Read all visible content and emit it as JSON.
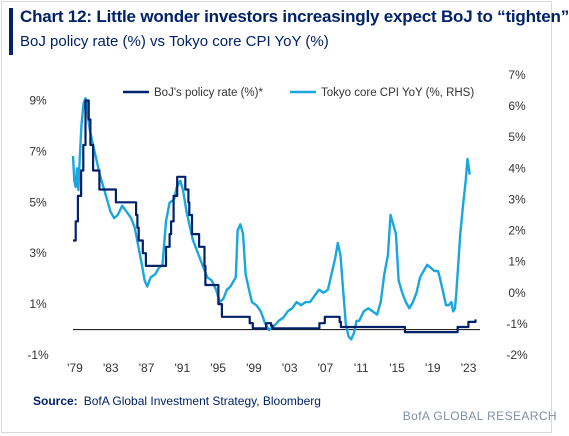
{
  "header": {
    "title": "Chart 12: Little wonder investors increasingly expect BoJ to “tighten”",
    "subtitle": "BoJ policy rate (%) vs Tokyo core CPI YoY (%)"
  },
  "footer": {
    "source_label": "Source:",
    "source_text": "BofA Global Investment Strategy, Bloomberg",
    "brand": "BofA GLOBAL RESEARCH"
  },
  "colors": {
    "boj": "#012169",
    "cpi": "#1aa6df",
    "axis": "#222222",
    "text": "#333333"
  },
  "chart_data": {
    "type": "line",
    "legend_position": "top",
    "grid": false,
    "x_range": [
      1979,
      2024.5
    ],
    "x_ticks": [
      {
        "v": 1979,
        "label": "'79"
      },
      {
        "v": 1983,
        "label": "'83"
      },
      {
        "v": 1987,
        "label": "'87"
      },
      {
        "v": 1991,
        "label": "'91"
      },
      {
        "v": 1995,
        "label": "'95"
      },
      {
        "v": 1999,
        "label": "'99"
      },
      {
        "v": 2003,
        "label": "'03"
      },
      {
        "v": 2007,
        "label": "'07"
      },
      {
        "v": 2011,
        "label": "'11"
      },
      {
        "v": 2015,
        "label": "'15"
      },
      {
        "v": 2019,
        "label": "'19"
      },
      {
        "v": 2023,
        "label": "'23"
      }
    ],
    "y_left": {
      "range": [
        -1,
        10
      ],
      "ticks": [
        {
          "v": 9,
          "label": "9%"
        },
        {
          "v": 7,
          "label": "7%"
        },
        {
          "v": 5,
          "label": "5%"
        },
        {
          "v": 3,
          "label": "3%"
        },
        {
          "v": 1,
          "label": "1%"
        },
        {
          "v": -1,
          "label": "-1%"
        }
      ]
    },
    "y_right": {
      "range": [
        -2,
        7
      ],
      "ticks": [
        {
          "v": 7,
          "label": "7%"
        },
        {
          "v": 6,
          "label": "6%"
        },
        {
          "v": 5,
          "label": "5%"
        },
        {
          "v": 4,
          "label": "4%"
        },
        {
          "v": 3,
          "label": "3%"
        },
        {
          "v": 2,
          "label": "2%"
        },
        {
          "v": 1,
          "label": "1%"
        },
        {
          "v": 0,
          "label": "0%"
        },
        {
          "v": -1,
          "label": "-1%"
        },
        {
          "v": -2,
          "label": "-2%"
        }
      ]
    },
    "series": [
      {
        "name": "BoJ's policy rate (%)*",
        "axis": "left",
        "step": true,
        "points": [
          [
            1979.0,
            3.5
          ],
          [
            1979.3,
            4.25
          ],
          [
            1979.55,
            5.25
          ],
          [
            1979.9,
            6.25
          ],
          [
            1980.15,
            7.25
          ],
          [
            1980.4,
            9.0
          ],
          [
            1980.75,
            8.25
          ],
          [
            1980.95,
            7.25
          ],
          [
            1981.25,
            6.25
          ],
          [
            1981.95,
            5.5
          ],
          [
            1983.8,
            5.0
          ],
          [
            1986.05,
            4.5
          ],
          [
            1986.2,
            4.0
          ],
          [
            1986.35,
            3.5
          ],
          [
            1986.8,
            3.0
          ],
          [
            1987.15,
            2.5
          ],
          [
            1989.4,
            3.25
          ],
          [
            1989.8,
            3.75
          ],
          [
            1989.97,
            4.25
          ],
          [
            1990.25,
            5.25
          ],
          [
            1990.65,
            6.0
          ],
          [
            1991.55,
            5.5
          ],
          [
            1991.9,
            5.0
          ],
          [
            1992.0,
            4.5
          ],
          [
            1992.3,
            3.75
          ],
          [
            1993.1,
            3.25
          ],
          [
            1993.7,
            2.5
          ],
          [
            1993.8,
            1.75
          ],
          [
            1995.25,
            1.0
          ],
          [
            1995.65,
            0.5
          ],
          [
            1998.75,
            0.25
          ],
          [
            1999.1,
            0.05
          ],
          [
            2000.6,
            0.25
          ],
          [
            2001.15,
            0.15
          ],
          [
            2001.3,
            0.05
          ],
          [
            2006.55,
            0.25
          ],
          [
            2007.15,
            0.5
          ],
          [
            2008.8,
            0.3
          ],
          [
            2008.95,
            0.1
          ],
          [
            2016.1,
            -0.1
          ],
          [
            2022.0,
            0.1
          ],
          [
            2023.2,
            0.3
          ],
          [
            2024.0,
            0.4
          ]
        ]
      },
      {
        "name": "Tokyo core CPI YoY (%, RHS)",
        "axis": "right",
        "points": [
          [
            1979.0,
            4.4
          ],
          [
            1979.15,
            3.6
          ],
          [
            1979.3,
            3.4
          ],
          [
            1979.45,
            4.0
          ],
          [
            1979.6,
            3.3
          ],
          [
            1979.75,
            4.3
          ],
          [
            1979.95,
            5.4
          ],
          [
            1980.2,
            6.1
          ],
          [
            1980.4,
            6.25
          ],
          [
            1980.55,
            6.1
          ],
          [
            1980.7,
            5.6
          ],
          [
            1980.9,
            5.2
          ],
          [
            1981.2,
            4.8
          ],
          [
            1981.6,
            4.3
          ],
          [
            1982.0,
            3.8
          ],
          [
            1982.4,
            3.4
          ],
          [
            1982.8,
            3.0
          ],
          [
            1983.2,
            2.6
          ],
          [
            1983.6,
            2.4
          ],
          [
            1984.0,
            2.5
          ],
          [
            1984.5,
            2.8
          ],
          [
            1985.0,
            2.6
          ],
          [
            1985.5,
            2.4
          ],
          [
            1985.9,
            2.1
          ],
          [
            1986.3,
            1.5
          ],
          [
            1986.7,
            0.9
          ],
          [
            1987.0,
            0.4
          ],
          [
            1987.3,
            0.2
          ],
          [
            1987.7,
            0.5
          ],
          [
            1988.2,
            0.6
          ],
          [
            1988.6,
            0.8
          ],
          [
            1989.0,
            0.9
          ],
          [
            1989.4,
            2.3
          ],
          [
            1989.8,
            2.9
          ],
          [
            1990.3,
            3.0
          ],
          [
            1990.6,
            3.4
          ],
          [
            1991.0,
            3.6
          ],
          [
            1991.3,
            3.3
          ],
          [
            1991.7,
            2.6
          ],
          [
            1992.0,
            2.2
          ],
          [
            1992.4,
            1.7
          ],
          [
            1992.8,
            1.4
          ],
          [
            1993.2,
            1.1
          ],
          [
            1993.6,
            0.8
          ],
          [
            1994.0,
            0.5
          ],
          [
            1994.5,
            0.4
          ],
          [
            1995.0,
            0.1
          ],
          [
            1995.4,
            -0.3
          ],
          [
            1995.8,
            -0.2
          ],
          [
            1996.2,
            0.1
          ],
          [
            1996.6,
            0.2
          ],
          [
            1997.2,
            0.5
          ],
          [
            1997.4,
            2.0
          ],
          [
            1997.7,
            2.2
          ],
          [
            1998.0,
            1.9
          ],
          [
            1998.3,
            0.6
          ],
          [
            1998.6,
            0.2
          ],
          [
            1999.0,
            -0.3
          ],
          [
            1999.5,
            -0.4
          ],
          [
            2000.0,
            -0.6
          ],
          [
            2000.5,
            -1.0
          ],
          [
            2000.9,
            -1.2
          ],
          [
            2001.3,
            -1.1
          ],
          [
            2001.7,
            -1.0
          ],
          [
            2002.0,
            -0.9
          ],
          [
            2002.5,
            -0.8
          ],
          [
            2003.0,
            -0.6
          ],
          [
            2003.5,
            -0.5
          ],
          [
            2004.0,
            -0.3
          ],
          [
            2004.5,
            -0.4
          ],
          [
            2005.0,
            -0.3
          ],
          [
            2005.5,
            -0.3
          ],
          [
            2006.0,
            -0.1
          ],
          [
            2006.5,
            0.1
          ],
          [
            2007.0,
            0.0
          ],
          [
            2007.5,
            0.1
          ],
          [
            2007.9,
            0.6
          ],
          [
            2008.3,
            1.1
          ],
          [
            2008.6,
            1.6
          ],
          [
            2008.9,
            1.2
          ],
          [
            2009.2,
            0.1
          ],
          [
            2009.5,
            -1.0
          ],
          [
            2009.8,
            -1.4
          ],
          [
            2010.1,
            -1.5
          ],
          [
            2010.4,
            -1.3
          ],
          [
            2010.7,
            -0.9
          ],
          [
            2011.0,
            -0.9
          ],
          [
            2011.5,
            -0.6
          ],
          [
            2012.0,
            -0.5
          ],
          [
            2012.5,
            -0.6
          ],
          [
            2013.0,
            -0.7
          ],
          [
            2013.4,
            -0.3
          ],
          [
            2013.8,
            0.6
          ],
          [
            2014.2,
            1.2
          ],
          [
            2014.5,
            2.5
          ],
          [
            2014.8,
            2.2
          ],
          [
            2015.1,
            1.9
          ],
          [
            2015.4,
            0.4
          ],
          [
            2015.8,
            0.0
          ],
          [
            2016.2,
            -0.3
          ],
          [
            2016.6,
            -0.5
          ],
          [
            2017.0,
            -0.3
          ],
          [
            2017.4,
            0.0
          ],
          [
            2017.8,
            0.5
          ],
          [
            2018.2,
            0.7
          ],
          [
            2018.6,
            0.9
          ],
          [
            2019.0,
            0.8
          ],
          [
            2019.4,
            0.7
          ],
          [
            2019.8,
            0.7
          ],
          [
            2020.0,
            0.5
          ],
          [
            2020.4,
            0.0
          ],
          [
            2020.7,
            -0.4
          ],
          [
            2021.0,
            -0.4
          ],
          [
            2021.3,
            -0.3
          ],
          [
            2021.5,
            -0.6
          ],
          [
            2021.7,
            -0.5
          ],
          [
            2021.85,
            0.0
          ],
          [
            2022.0,
            0.6
          ],
          [
            2022.3,
            1.9
          ],
          [
            2022.6,
            2.8
          ],
          [
            2022.9,
            3.6
          ],
          [
            2023.1,
            4.3
          ],
          [
            2023.35,
            3.8
          ]
        ]
      }
    ]
  }
}
